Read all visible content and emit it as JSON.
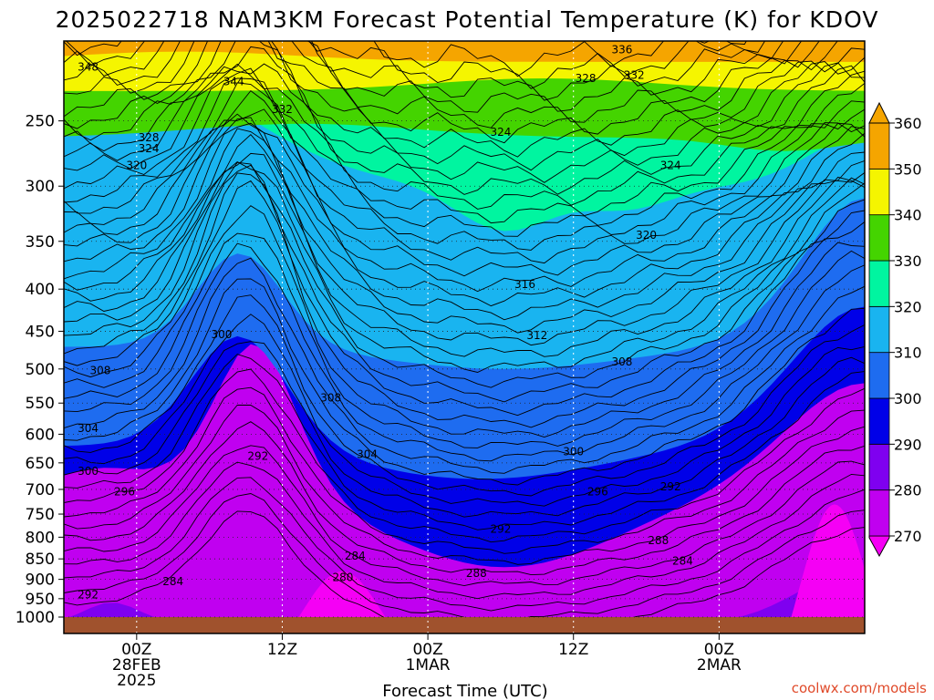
{
  "chart_data": {
    "type": "heatmap",
    "title": "2025022718 NAM3KM Forecast Potential Temperature (K) for KDOV",
    "xlabel": "Forecast Time (UTC)",
    "ylabel": "",
    "y_scale": "log-pressure",
    "ylim_hpa": [
      1000,
      200
    ],
    "y_ticks": [
      "250",
      "300",
      "350",
      "400",
      "450",
      "500",
      "550",
      "600",
      "650",
      "700",
      "750",
      "800",
      "850",
      "900",
      "950",
      "1000"
    ],
    "x_ticks": [
      {
        "time": "2025-02-28 00Z",
        "line1": "00Z",
        "line2": "28FEB",
        "line3": "2025"
      },
      {
        "time": "2025-02-28 12Z",
        "line1": "12Z",
        "line2": "",
        "line3": ""
      },
      {
        "time": "2025-03-01 00Z",
        "line1": "00Z",
        "line2": "1MAR",
        "line3": ""
      },
      {
        "time": "2025-03-01 12Z",
        "line1": "12Z",
        "line2": "",
        "line3": ""
      },
      {
        "time": "2025-03-02 00Z",
        "line1": "00Z",
        "line2": "2MAR",
        "line3": ""
      }
    ],
    "xlim": [
      "2025-02-27 18Z",
      "2025-03-02 12Z"
    ],
    "grid": true,
    "colorbar": {
      "levels": [
        270,
        280,
        290,
        300,
        310,
        320,
        330,
        340,
        350,
        360
      ],
      "labels": [
        "270",
        "280",
        "290",
        "300",
        "310",
        "320",
        "330",
        "340",
        "350",
        "360"
      ],
      "colors": [
        "#f500f5",
        "#c000f0",
        "#7f00f0",
        "#0000e8",
        "#1e6cf0",
        "#19b4f0",
        "#00f5a0",
        "#44d400",
        "#f5f500",
        "#f5a500"
      ]
    },
    "isentrope_interval_K": 2,
    "contour_labels": [
      {
        "time": "2025-02-27 20Z",
        "p": 215,
        "value": "348"
      },
      {
        "time": "2025-02-28 08Z",
        "p": 224,
        "value": "344"
      },
      {
        "time": "2025-02-28 12Z",
        "p": 242,
        "value": "332"
      },
      {
        "time": "2025-02-28 01Z",
        "p": 262,
        "value": "328"
      },
      {
        "time": "2025-02-28 01Z",
        "p": 270,
        "value": "324"
      },
      {
        "time": "2025-02-28 00Z",
        "p": 283,
        "value": "320"
      },
      {
        "time": "2025-03-01 16Z",
        "p": 205,
        "value": "336"
      },
      {
        "time": "2025-03-01 13Z",
        "p": 222,
        "value": "328"
      },
      {
        "time": "2025-03-01 17Z",
        "p": 220,
        "value": "332"
      },
      {
        "time": "2025-03-01 06Z",
        "p": 258,
        "value": "324"
      },
      {
        "time": "2025-03-01 20Z",
        "p": 283,
        "value": "324"
      },
      {
        "time": "2025-03-01 18Z",
        "p": 344,
        "value": "320"
      },
      {
        "time": "2025-03-01 08Z",
        "p": 395,
        "value": "316"
      },
      {
        "time": "2025-03-01 09Z",
        "p": 455,
        "value": "312"
      },
      {
        "time": "2025-03-01 16Z",
        "p": 490,
        "value": "308"
      },
      {
        "time": "2025-02-27 21Z",
        "p": 502,
        "value": "308"
      },
      {
        "time": "2025-02-28 16Z",
        "p": 542,
        "value": "308"
      },
      {
        "time": "2025-02-28 07Z",
        "p": 454,
        "value": "300"
      },
      {
        "time": "2025-02-27 20Z",
        "p": 590,
        "value": "304"
      },
      {
        "time": "2025-02-28 19Z",
        "p": 635,
        "value": "304"
      },
      {
        "time": "2025-02-27 20Z",
        "p": 665,
        "value": "300"
      },
      {
        "time": "2025-03-01 12Z",
        "p": 630,
        "value": "300"
      },
      {
        "time": "2025-02-28 10Z",
        "p": 638,
        "value": "292"
      },
      {
        "time": "2025-02-27 23Z",
        "p": 705,
        "value": "296"
      },
      {
        "time": "2025-03-01 14Z",
        "p": 705,
        "value": "296"
      },
      {
        "time": "2025-03-01 20Z",
        "p": 695,
        "value": "292"
      },
      {
        "time": "2025-03-01 06Z",
        "p": 782,
        "value": "292"
      },
      {
        "time": "2025-03-01 19Z",
        "p": 807,
        "value": "288"
      },
      {
        "time": "2025-02-28 18Z",
        "p": 843,
        "value": "284"
      },
      {
        "time": "2025-03-01 04Z",
        "p": 885,
        "value": "288"
      },
      {
        "time": "2025-02-28 03Z",
        "p": 905,
        "value": "284"
      },
      {
        "time": "2025-03-01 21Z",
        "p": 855,
        "value": "284"
      },
      {
        "time": "2025-02-28 17Z",
        "p": 895,
        "value": "280"
      },
      {
        "time": "2025-02-27 20Z",
        "p": 940,
        "value": "292"
      }
    ]
  },
  "credit": "coolwx.com/models"
}
